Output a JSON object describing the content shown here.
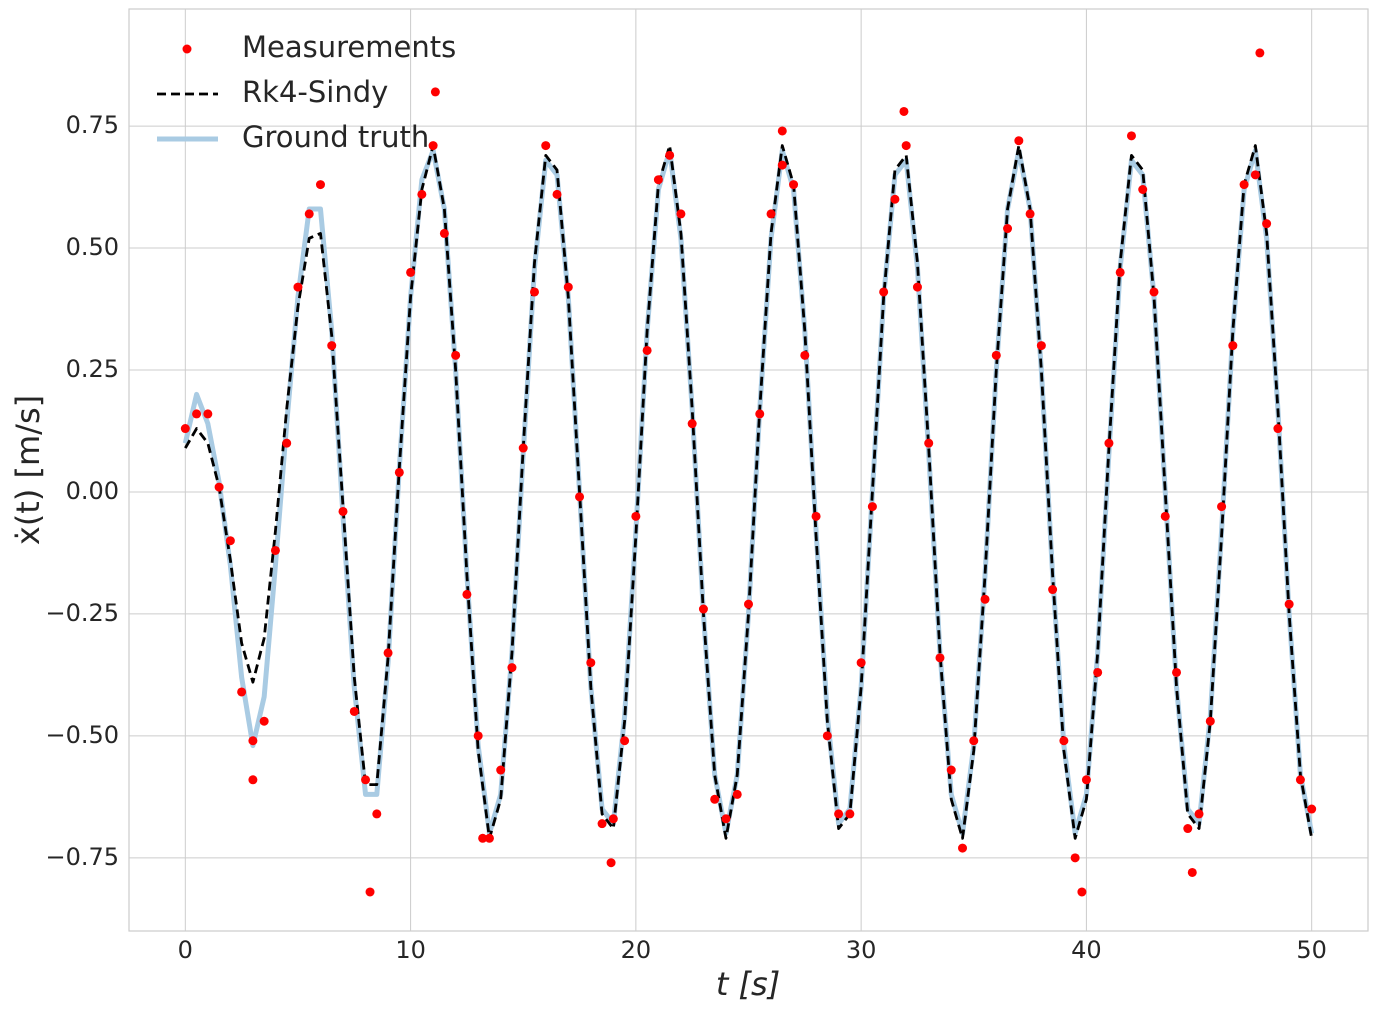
{
  "chart_data": {
    "type": "line",
    "x_label": "t [s]",
    "y_label": "ẋ(t) [m/s]",
    "xlim": [
      -2.5,
      52.5
    ],
    "ylim": [
      -0.9,
      0.99
    ],
    "xticks": [
      0,
      10,
      20,
      30,
      40,
      50
    ],
    "yticks": [
      {
        "value": -0.75,
        "label": "−0.75"
      },
      {
        "value": -0.5,
        "label": "−0.50"
      },
      {
        "value": -0.25,
        "label": "−0.25"
      },
      {
        "value": 0,
        "label": "0.00"
      },
      {
        "value": 0.25,
        "label": "0.25"
      },
      {
        "value": 0.5,
        "label": "0.50"
      },
      {
        "value": 0.75,
        "label": "0.75"
      }
    ],
    "grid": true,
    "legend": "upper left",
    "series": [
      {
        "name": "Measurements",
        "color": "#ff0000",
        "kind": "scatter",
        "x": [
          0,
          0.5,
          1,
          1.5,
          2,
          2.5,
          3,
          3.5,
          4,
          4.5,
          5,
          5.5,
          6,
          6.5,
          7,
          7.5,
          8,
          8.5,
          9,
          9.5,
          10,
          10.5,
          11,
          11.5,
          12,
          12.5,
          13,
          13.5,
          14,
          14.5,
          15,
          15.5,
          16,
          16.5,
          17,
          17.5,
          18,
          18.5,
          19,
          19.5,
          20,
          20.5,
          21,
          21.5,
          22,
          22.5,
          23,
          23.5,
          24,
          24.5,
          25,
          25.5,
          26,
          26.5,
          27,
          27.5,
          28,
          28.5,
          29,
          29.5,
          30,
          30.5,
          31,
          31.5,
          32,
          32.5,
          33,
          33.5,
          34,
          34.5,
          35,
          35.5,
          36,
          36.5,
          37,
          37.5,
          38,
          38.5,
          39,
          39.5,
          40,
          40.5,
          41,
          41.5,
          42,
          42.5,
          43,
          43.5,
          44,
          44.5,
          45,
          45.5,
          46,
          46.5,
          47,
          47.5,
          48,
          48.5,
          49,
          49.5,
          50,
          8.2,
          11.1,
          18.9,
          26.5,
          31.9,
          39.8,
          44.7,
          47.7,
          3.0,
          13.2
        ],
        "values": [
          0.13,
          0.16,
          0.16,
          0.01,
          -0.1,
          -0.41,
          -0.51,
          -0.47,
          -0.12,
          0.1,
          0.42,
          0.57,
          0.63,
          0.3,
          -0.04,
          -0.45,
          -0.59,
          -0.66,
          -0.33,
          0.04,
          0.45,
          0.61,
          0.71,
          0.53,
          0.28,
          -0.21,
          -0.5,
          -0.71,
          -0.57,
          -0.36,
          0.09,
          0.41,
          0.71,
          0.61,
          0.42,
          -0.01,
          -0.35,
          -0.68,
          -0.67,
          -0.51,
          -0.05,
          0.29,
          0.64,
          0.69,
          0.57,
          0.14,
          -0.24,
          -0.63,
          -0.67,
          -0.62,
          -0.23,
          0.16,
          0.57,
          0.67,
          0.63,
          0.28,
          -0.05,
          -0.5,
          -0.66,
          -0.66,
          -0.35,
          -0.03,
          0.41,
          0.6,
          0.71,
          0.42,
          0.1,
          -0.34,
          -0.57,
          -0.73,
          -0.51,
          -0.22,
          0.28,
          0.54,
          0.72,
          0.57,
          0.3,
          -0.2,
          -0.51,
          -0.75,
          -0.59,
          -0.37,
          0.1,
          0.45,
          0.73,
          0.62,
          0.41,
          -0.05,
          -0.37,
          -0.69,
          -0.66,
          -0.47,
          -0.03,
          0.3,
          0.63,
          0.65,
          0.55,
          0.13,
          -0.23,
          -0.59,
          -0.65,
          -0.82,
          0.82,
          -0.76,
          0.74,
          0.78,
          -0.82,
          -0.78,
          0.9,
          -0.59,
          -0.71
        ]
      },
      {
        "name": "Rk4-Sindy",
        "color": "#000000",
        "kind": "dashed",
        "x": [
          0,
          0.5,
          1,
          1.5,
          2,
          2.5,
          3,
          3.5,
          4,
          4.5,
          5,
          5.5,
          6,
          6.5,
          7,
          7.5,
          8,
          8.5,
          9,
          9.5,
          10,
          10.5,
          11,
          11.5,
          12,
          12.5,
          13,
          13.5,
          14,
          14.5,
          15,
          15.5,
          16,
          16.5,
          17,
          17.5,
          18,
          18.5,
          19,
          19.5,
          20,
          20.5,
          21,
          21.5,
          22,
          22.5,
          23,
          23.5,
          24,
          24.5,
          25,
          25.5,
          26,
          26.5,
          27,
          27.5,
          28,
          28.5,
          29,
          29.5,
          30,
          30.5,
          31,
          31.5,
          32,
          32.5,
          33,
          33.5,
          34,
          34.5,
          35,
          35.5,
          36,
          36.5,
          37,
          37.5,
          38,
          38.5,
          39,
          39.5,
          40,
          40.5,
          41,
          41.5,
          42,
          42.5,
          43,
          43.5,
          44,
          44.5,
          45,
          45.5,
          46,
          46.5,
          47,
          47.5,
          48,
          48.5,
          49,
          49.5,
          50
        ],
        "values": [
          0.09,
          0.13,
          0.1,
          0.01,
          -0.14,
          -0.31,
          -0.39,
          -0.3,
          -0.08,
          0.17,
          0.38,
          0.52,
          0.53,
          0.32,
          -0.03,
          -0.38,
          -0.6,
          -0.6,
          -0.34,
          0.05,
          0.4,
          0.62,
          0.71,
          0.58,
          0.25,
          -0.17,
          -0.53,
          -0.71,
          -0.63,
          -0.33,
          0.09,
          0.47,
          0.69,
          0.66,
          0.4,
          0,
          -0.4,
          -0.66,
          -0.69,
          -0.47,
          -0.09,
          0.33,
          0.63,
          0.71,
          0.53,
          0.17,
          -0.25,
          -0.58,
          -0.71,
          -0.58,
          -0.25,
          0.17,
          0.53,
          0.71,
          0.63,
          0.33,
          -0.09,
          -0.47,
          -0.69,
          -0.66,
          -0.4,
          0,
          0.4,
          0.66,
          0.69,
          0.47,
          0.09,
          -0.33,
          -0.63,
          -0.71,
          -0.53,
          -0.17,
          0.25,
          0.58,
          0.71,
          0.58,
          0.25,
          -0.17,
          -0.53,
          -0.71,
          -0.63,
          -0.33,
          0.09,
          0.47,
          0.69,
          0.66,
          0.4,
          0,
          -0.4,
          -0.66,
          -0.69,
          -0.47,
          -0.09,
          0.33,
          0.63,
          0.71,
          0.53,
          0.17,
          -0.25,
          -0.58,
          -0.71
        ]
      },
      {
        "name": "Ground truth",
        "color": "#a9cbe3",
        "kind": "solid",
        "x": [
          0,
          0.5,
          1,
          1.5,
          2,
          2.5,
          3,
          3.5,
          4,
          4.5,
          5,
          5.5,
          6,
          6.5,
          7,
          7.5,
          8,
          8.5,
          9,
          9.5,
          10,
          10.5,
          11,
          11.5,
          12,
          12.5,
          13,
          13.5,
          14,
          14.5,
          15,
          15.5,
          16,
          16.5,
          17,
          17.5,
          18,
          18.5,
          19,
          19.5,
          20,
          20.5,
          21,
          21.5,
          22,
          22.5,
          23,
          23.5,
          24,
          24.5,
          25,
          25.5,
          26,
          26.5,
          27,
          27.5,
          28,
          28.5,
          29,
          29.5,
          30,
          30.5,
          31,
          31.5,
          32,
          32.5,
          33,
          33.5,
          34,
          34.5,
          35,
          35.5,
          36,
          36.5,
          37,
          37.5,
          38,
          38.5,
          39,
          39.5,
          40,
          40.5,
          41,
          41.5,
          42,
          42.5,
          43,
          43.5,
          44,
          44.5,
          45,
          45.5,
          46,
          46.5,
          47,
          47.5,
          48,
          48.5,
          49,
          49.5,
          50
        ],
        "values": [
          0.1,
          0.2,
          0.14,
          0.02,
          -0.15,
          -0.38,
          -0.52,
          -0.42,
          -0.15,
          0.14,
          0.4,
          0.58,
          0.58,
          0.33,
          -0.05,
          -0.4,
          -0.62,
          -0.62,
          -0.35,
          0.05,
          0.4,
          0.64,
          0.7,
          0.58,
          0.25,
          -0.17,
          -0.52,
          -0.7,
          -0.62,
          -0.33,
          0.08,
          0.46,
          0.68,
          0.65,
          0.4,
          0,
          -0.4,
          -0.65,
          -0.68,
          -0.46,
          -0.08,
          0.33,
          0.62,
          0.7,
          0.52,
          0.17,
          -0.25,
          -0.58,
          -0.7,
          -0.58,
          -0.25,
          0.17,
          0.52,
          0.7,
          0.62,
          0.33,
          -0.08,
          -0.46,
          -0.68,
          -0.65,
          -0.4,
          0,
          0.4,
          0.65,
          0.68,
          0.46,
          0.08,
          -0.33,
          -0.62,
          -0.7,
          -0.52,
          -0.17,
          0.25,
          0.58,
          0.7,
          0.58,
          0.25,
          -0.17,
          -0.52,
          -0.7,
          -0.62,
          -0.33,
          0.08,
          0.46,
          0.68,
          0.65,
          0.4,
          0,
          -0.4,
          -0.65,
          -0.68,
          -0.46,
          -0.08,
          0.33,
          0.62,
          0.7,
          0.52,
          0.17,
          -0.25,
          -0.58,
          -0.7
        ]
      }
    ]
  }
}
